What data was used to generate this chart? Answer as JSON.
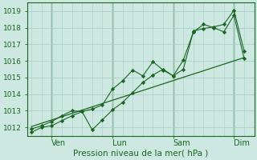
{
  "xlabel": "Pression niveau de la mer( hPa )",
  "bg_color": "#cce8e0",
  "grid_color": "#aacfc8",
  "line_color": "#1a6620",
  "label_color": "#1a6620",
  "ylim": [
    1011.5,
    1019.5
  ],
  "day_labels": [
    "Ven",
    "Lun",
    "Sam",
    "Dim"
  ],
  "day_positions": [
    1,
    4,
    7,
    10
  ],
  "series1_x": [
    0,
    0.5,
    1,
    1.5,
    2,
    2.5,
    3,
    3.5,
    4,
    4.5,
    5,
    5.5,
    6,
    6.5,
    7,
    7.5,
    8,
    8.5,
    9,
    9.5,
    10,
    10.5
  ],
  "series1_y": [
    1011.7,
    1012.0,
    1012.1,
    1012.4,
    1012.7,
    1012.95,
    1011.85,
    1012.45,
    1013.05,
    1013.5,
    1014.1,
    1014.7,
    1015.15,
    1015.5,
    1015.1,
    1015.5,
    1017.8,
    1017.95,
    1018.05,
    1018.2,
    1019.05,
    1016.6
  ],
  "series2_x": [
    0,
    0.5,
    1,
    1.5,
    2,
    2.5,
    3,
    3.5,
    4,
    4.5,
    5,
    5.5,
    6,
    6.5,
    7,
    7.5,
    8,
    8.5,
    9,
    9.5,
    10,
    10.5
  ],
  "series2_y": [
    1011.9,
    1012.1,
    1012.35,
    1012.7,
    1013.0,
    1012.95,
    1013.1,
    1013.35,
    1014.3,
    1014.8,
    1015.45,
    1015.1,
    1015.95,
    1015.45,
    1015.1,
    1016.05,
    1017.75,
    1018.2,
    1018.0,
    1017.75,
    1018.75,
    1016.15
  ],
  "series3_x": [
    0,
    10.5
  ],
  "series3_y": [
    1012.05,
    1016.2
  ],
  "xlim": [
    -0.2,
    11.0
  ],
  "xtick_positions": [
    1,
    4,
    7,
    10
  ],
  "yticks": [
    1012,
    1013,
    1014,
    1015,
    1016,
    1017,
    1018,
    1019
  ],
  "vlines": [
    1,
    4,
    7,
    10
  ]
}
